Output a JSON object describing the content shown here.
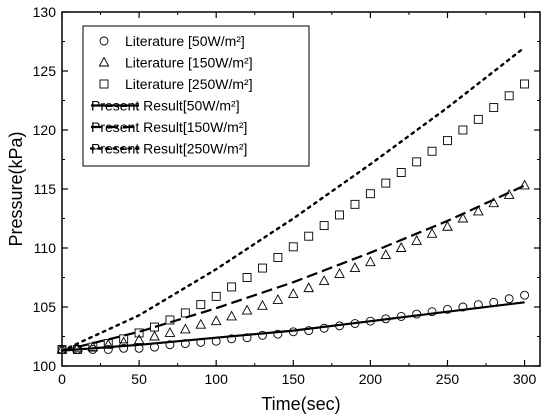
{
  "chart_data": {
    "type": "scatter",
    "xlabel": "Time(sec)",
    "ylabel": "Pressure(kPa)",
    "xlim": [
      0,
      310
    ],
    "ylim": [
      100,
      130
    ],
    "xticks": [
      "0",
      "50",
      "100",
      "150",
      "200",
      "250",
      "300"
    ],
    "yticks": [
      "100",
      "105",
      "110",
      "115",
      "120",
      "125",
      "130"
    ],
    "grid": false,
    "legend_position": "top-left",
    "series": [
      {
        "name": "Literature  [50W/m²]",
        "kind": "markers",
        "marker": "circle",
        "x": [
          0,
          10,
          20,
          30,
          40,
          50,
          60,
          70,
          80,
          90,
          100,
          110,
          120,
          130,
          140,
          150,
          160,
          170,
          180,
          190,
          200,
          210,
          220,
          230,
          240,
          250,
          260,
          270,
          280,
          290,
          300
        ],
        "values": [
          101.4,
          101.4,
          101.4,
          101.4,
          101.5,
          101.5,
          101.6,
          101.8,
          101.9,
          102.0,
          102.1,
          102.3,
          102.4,
          102.6,
          102.7,
          102.9,
          103.0,
          103.2,
          103.4,
          103.6,
          103.8,
          104.0,
          104.2,
          104.4,
          104.6,
          104.8,
          105.0,
          105.2,
          105.4,
          105.7,
          106.0
        ]
      },
      {
        "name": "Literature  [150W/m²]",
        "kind": "markers",
        "marker": "triangle",
        "x": [
          0,
          10,
          20,
          30,
          40,
          50,
          60,
          70,
          80,
          90,
          100,
          110,
          120,
          130,
          140,
          150,
          160,
          170,
          180,
          190,
          200,
          210,
          220,
          230,
          240,
          250,
          260,
          270,
          280,
          290,
          300
        ],
        "values": [
          101.4,
          101.5,
          101.6,
          101.8,
          102.0,
          102.2,
          102.5,
          102.8,
          103.1,
          103.5,
          103.8,
          104.2,
          104.7,
          105.1,
          105.6,
          106.1,
          106.6,
          107.2,
          107.8,
          108.3,
          108.8,
          109.4,
          110.0,
          110.6,
          111.2,
          111.8,
          112.5,
          113.1,
          113.8,
          114.5,
          115.3
        ]
      },
      {
        "name": "Literature  [250W/m²]",
        "kind": "markers",
        "marker": "square",
        "x": [
          0,
          10,
          20,
          30,
          40,
          50,
          60,
          70,
          80,
          90,
          100,
          110,
          120,
          130,
          140,
          150,
          160,
          170,
          180,
          190,
          200,
          210,
          220,
          230,
          240,
          250,
          260,
          270,
          280,
          290,
          300
        ],
        "values": [
          101.4,
          101.4,
          101.6,
          101.9,
          102.3,
          102.8,
          103.3,
          103.9,
          104.5,
          105.2,
          105.9,
          106.7,
          107.5,
          108.3,
          109.2,
          110.1,
          111.0,
          111.9,
          112.8,
          113.7,
          114.6,
          115.5,
          116.4,
          117.3,
          118.2,
          119.1,
          120.0,
          120.9,
          121.9,
          122.9,
          123.9
        ]
      },
      {
        "name": "Present Result[50W/m²]",
        "kind": "line",
        "dash": "solid",
        "x": [
          0,
          50,
          100,
          150,
          200,
          250,
          300
        ],
        "values": [
          101.3,
          101.8,
          102.4,
          103.0,
          103.8,
          104.6,
          105.4
        ]
      },
      {
        "name": "Present Result[150W/m²]",
        "kind": "line",
        "dash": "dashed",
        "x": [
          0,
          50,
          100,
          150,
          200,
          250,
          300
        ],
        "values": [
          101.3,
          102.9,
          104.9,
          107.1,
          109.6,
          112.3,
          115.3
        ]
      },
      {
        "name": "Present Result[250W/m²]",
        "kind": "line",
        "dash": "dotted",
        "x": [
          0,
          50,
          100,
          150,
          200,
          250,
          300
        ],
        "values": [
          101.3,
          104.3,
          108.2,
          112.5,
          117.1,
          121.9,
          127.0
        ]
      }
    ]
  }
}
